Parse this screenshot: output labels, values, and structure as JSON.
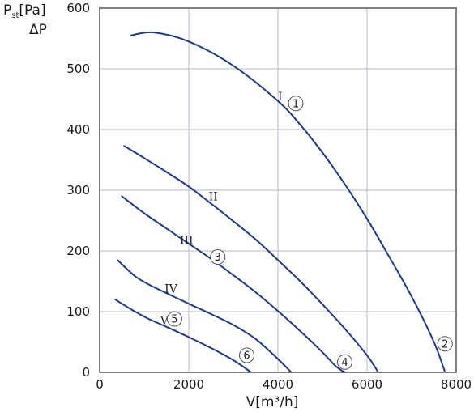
{
  "chart_data": {
    "type": "line",
    "title": "",
    "xlabel": "V[m³/h]",
    "ylabel": "P",
    "ylabel_subscript": "st",
    "ylabel_unit": "[Pa]",
    "ylabel_line2": "ΔP",
    "xlim": [
      0,
      8000
    ],
    "ylim": [
      0,
      600
    ],
    "x_ticks": [
      0,
      2000,
      4000,
      6000,
      8000
    ],
    "y_ticks": [
      0,
      100,
      200,
      300,
      400,
      500,
      600
    ],
    "x_tick_labels": [
      "0",
      "2000",
      "4000",
      "6000",
      "8000"
    ],
    "y_tick_labels": [
      "0",
      "100",
      "200",
      "300",
      "400",
      "500",
      "600"
    ],
    "grid": true,
    "line_color": "#1e3a8a",
    "grid_color": "#b8b8c8",
    "frame_color": "#808080",
    "series": [
      {
        "label": "I",
        "x": [
          700,
          1200,
          2000,
          3000,
          4000,
          4500,
          5000,
          5500,
          6000,
          6500,
          7000,
          7500,
          7750
        ],
        "y": [
          555,
          560,
          545,
          505,
          447,
          408,
          362,
          310,
          253,
          190,
          125,
          50,
          0
        ]
      },
      {
        "label": "II",
        "x": [
          550,
          1000,
          1500,
          2000,
          2500,
          3000,
          3500,
          4000,
          4500,
          5000,
          5500,
          6000,
          6250
        ],
        "y": [
          373,
          353,
          330,
          306,
          278,
          249,
          219,
          185,
          150,
          112,
          72,
          28,
          0
        ]
      },
      {
        "label": "III",
        "x": [
          500,
          1000,
          1500,
          2000,
          2500,
          3000,
          3500,
          4000,
          4500,
          5000,
          5300,
          5500
        ],
        "y": [
          290,
          262,
          237,
          212,
          187,
          160,
          132,
          101,
          68,
          33,
          10,
          0
        ]
      },
      {
        "label": "IV",
        "x": [
          400,
          800,
          1200,
          1600,
          2000,
          2500,
          3000,
          3500,
          4000,
          4300
        ],
        "y": [
          185,
          158,
          141,
          127,
          113,
          96,
          78,
          55,
          22,
          0
        ]
      },
      {
        "label": "V",
        "x": [
          350,
          700,
          1100,
          1500,
          2000,
          2500,
          3000,
          3400
        ],
        "y": [
          120,
          104,
          88,
          75,
          58,
          40,
          20,
          0
        ]
      }
    ],
    "roman_labels": [
      {
        "text": "I",
        "x": 4050,
        "y": 455
      },
      {
        "text": "II",
        "x": 2550,
        "y": 290
      },
      {
        "text": "III",
        "x": 1950,
        "y": 218
      },
      {
        "text": "IV",
        "x": 1600,
        "y": 138
      },
      {
        "text": "V",
        "x": 1450,
        "y": 86
      }
    ],
    "markers": [
      {
        "text": "1",
        "x": 4400,
        "y": 443
      },
      {
        "text": "2",
        "x": 7750,
        "y": 47
      },
      {
        "text": "3",
        "x": 2650,
        "y": 190
      },
      {
        "text": "4",
        "x": 5500,
        "y": 17
      },
      {
        "text": "5",
        "x": 1680,
        "y": 88
      },
      {
        "text": "6",
        "x": 3300,
        "y": 28
      }
    ]
  }
}
